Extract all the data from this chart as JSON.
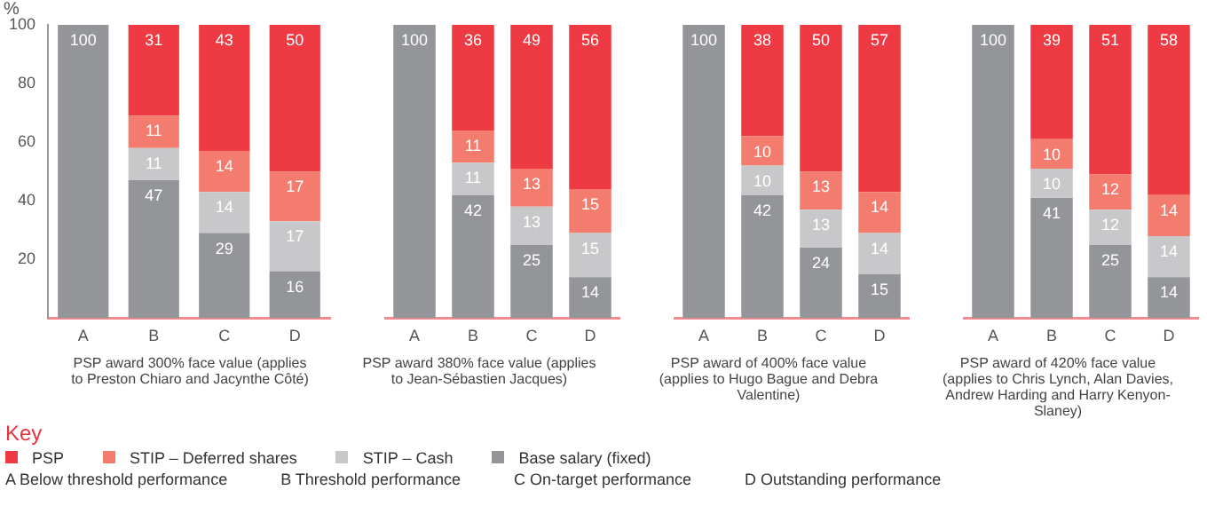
{
  "chart_data": [
    {
      "type": "bar",
      "stacked": true,
      "ylabel": "%",
      "xlabel": "PSP award 300% face value (applies to Preston Chiaro and Jacynthe Côté)",
      "categories": [
        "A",
        "B",
        "C",
        "D"
      ],
      "ylim": [
        0,
        100
      ],
      "yticks": [
        20,
        40,
        60,
        80,
        100
      ],
      "grid": false,
      "data_labels": true,
      "legend": "bottom",
      "legend_title": "Key",
      "annotations": [
        "A Below threshold performance",
        "B Threshold performance",
        "C On-target performance",
        "D Outstanding performance"
      ],
      "series": [
        {
          "name": "Base salary (fixed)",
          "color": "#939598",
          "values": [
            100,
            47,
            29,
            16
          ]
        },
        {
          "name": "STIP – Cash",
          "color": "#c8c8ca",
          "values": [
            null,
            11,
            14,
            17
          ]
        },
        {
          "name": "STIP – Deferred shares",
          "color": "#f47c6e",
          "values": [
            null,
            11,
            14,
            17
          ]
        },
        {
          "name": "PSP",
          "color": "#ee3a43",
          "values": [
            null,
            31,
            43,
            50
          ]
        }
      ]
    },
    {
      "type": "bar",
      "stacked": true,
      "xlabel": "PSP award 380% face value (applies to Jean-Sébastien Jacques)",
      "categories": [
        "A",
        "B",
        "C",
        "D"
      ],
      "ylim": [
        0,
        100
      ],
      "yticks": [
        20,
        40,
        60,
        80,
        100
      ],
      "tick_labels": "x",
      "data_labels": true,
      "series": [
        {
          "color": "#939598",
          "values": [
            100,
            42,
            25,
            14
          ]
        },
        {
          "color": "#c8c8ca",
          "values": [
            null,
            11,
            13,
            15
          ]
        },
        {
          "color": "#f47c6e",
          "values": [
            null,
            11,
            13,
            15
          ]
        },
        {
          "color": "#ee3a43",
          "values": [
            null,
            36,
            49,
            56
          ]
        }
      ]
    },
    {
      "type": "bar",
      "stacked": true,
      "xlabel": "PSP award of 400% face value (applies to Hugo Bague and Debra Valentine)",
      "categories": [
        "A",
        "B",
        "C",
        "D"
      ],
      "ylim": [
        0,
        100
      ],
      "yticks": [
        20,
        40,
        60,
        80,
        100
      ],
      "tick_labels": "x",
      "data_labels": true,
      "series": [
        {
          "color": "#939598",
          "values": [
            100,
            42,
            24,
            15
          ]
        },
        {
          "color": "#c8c8ca",
          "values": [
            null,
            10,
            13,
            14
          ]
        },
        {
          "color": "#f47c6e",
          "values": [
            null,
            10,
            13,
            14
          ]
        },
        {
          "color": "#ee3a43",
          "values": [
            null,
            38,
            50,
            57
          ]
        }
      ]
    },
    {
      "type": "bar",
      "stacked": true,
      "xlabel": "PSP award of 420% face value (applies to Chris Lynch, Alan Davies, Andrew Harding and Harry Kenyon-Slaney)",
      "categories": [
        "A",
        "B",
        "C",
        "D"
      ],
      "ylim": [
        0,
        100
      ],
      "yticks": [
        20,
        40,
        60,
        80,
        100
      ],
      "tick_labels": "x",
      "data_labels": true,
      "series": [
        {
          "color": "#939598",
          "values": [
            100,
            41,
            25,
            14
          ]
        },
        {
          "color": "#c8c8ca",
          "values": [
            null,
            10,
            12,
            14
          ]
        },
        {
          "color": "#f47c6e",
          "values": [
            null,
            10,
            12,
            14
          ]
        },
        {
          "color": "#ee3a43",
          "values": [
            null,
            39,
            51,
            58
          ]
        }
      ]
    }
  ]
}
